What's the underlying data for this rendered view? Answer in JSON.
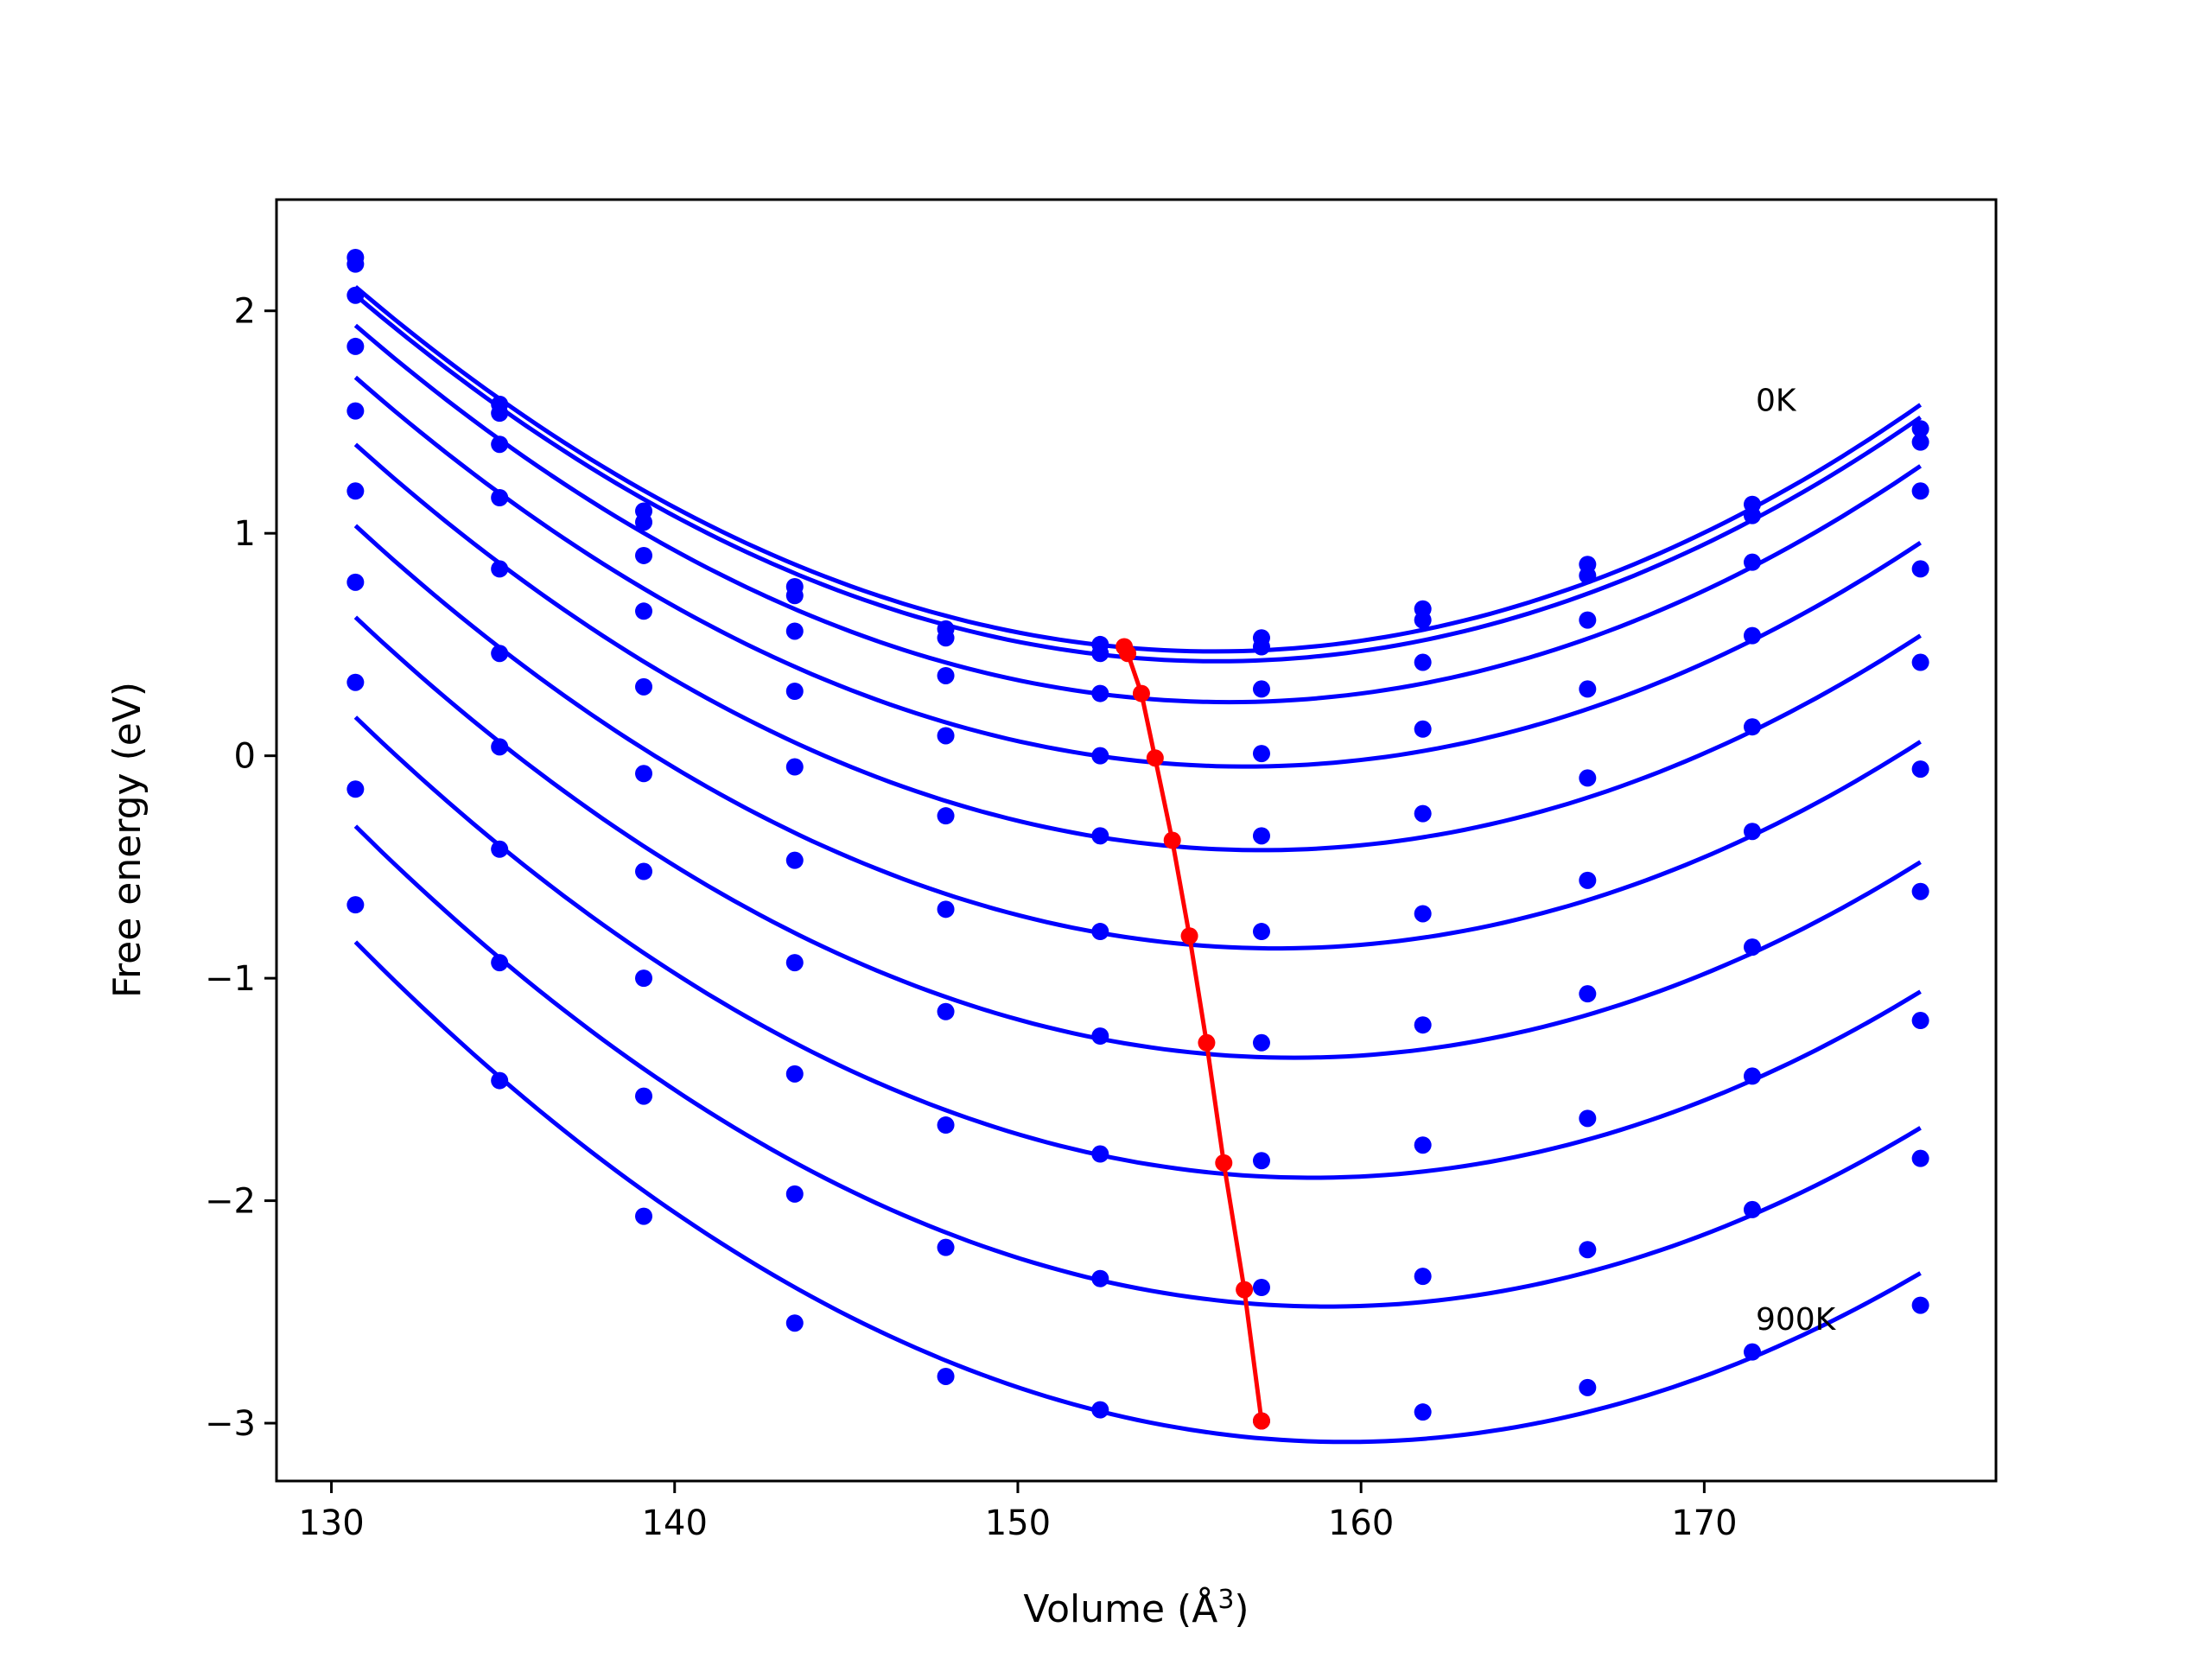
{
  "chart_data": {
    "type": "line",
    "title": "",
    "xlabel": "Volume (Å",
    "xlabel_sup": "3",
    "xlabel_close": ")",
    "ylabel": "Free energy (eV)",
    "xlim": [
      128.4,
      178.5
    ],
    "ylim": [
      -3.26,
      2.5
    ],
    "xticks": [
      130,
      140,
      150,
      160,
      170
    ],
    "yticks": [
      -3,
      -2,
      -1,
      0,
      1,
      2
    ],
    "ytick_labels": [
      "−3",
      "−2",
      "−1",
      "0",
      "1",
      "2"
    ],
    "grid": false,
    "colors": {
      "curves": "#0000ff",
      "minima": "#ff0000",
      "axes": "#000000"
    },
    "annotations": [
      {
        "text": "0K",
        "x": 171.5,
        "y": 1.55
      },
      {
        "text": "900K",
        "x": 171.5,
        "y": -2.58
      }
    ],
    "volumes": [
      130.7,
      134.9,
      139.1,
      143.5,
      147.9,
      152.4,
      157.1,
      161.8,
      166.6,
      171.4,
      176.3
    ],
    "series": [
      {
        "values": [
          2.24,
          1.58,
          1.1,
          0.76,
          0.57,
          0.5,
          0.53,
          0.66,
          0.86,
          1.13,
          1.47
        ],
        "min": [
          153.1,
          0.49
        ]
      },
      {
        "values": [
          2.21,
          1.54,
          1.05,
          0.72,
          0.53,
          0.46,
          0.49,
          0.61,
          0.81,
          1.08,
          1.41
        ],
        "min": [
          153.2,
          0.46
        ]
      },
      {
        "values": [
          2.07,
          1.4,
          0.9,
          0.56,
          0.36,
          0.28,
          0.3,
          0.42,
          0.61,
          0.87,
          1.19
        ],
        "min": [
          153.6,
          0.28
        ]
      },
      {
        "values": [
          1.84,
          1.16,
          0.65,
          0.29,
          0.09,
          0.0,
          0.01,
          0.12,
          0.3,
          0.54,
          0.84
        ],
        "min": [
          154.0,
          -0.01
        ]
      },
      {
        "values": [
          1.55,
          0.84,
          0.31,
          -0.05,
          -0.27,
          -0.36,
          -0.36,
          -0.26,
          -0.1,
          0.13,
          0.42
        ],
        "min": [
          154.5,
          -0.38
        ]
      },
      {
        "values": [
          1.19,
          0.46,
          -0.08,
          -0.47,
          -0.69,
          -0.79,
          -0.79,
          -0.71,
          -0.56,
          -0.34,
          -0.06
        ],
        "min": [
          155.0,
          -0.81
        ]
      },
      {
        "values": [
          0.78,
          0.04,
          -0.52,
          -0.93,
          -1.15,
          -1.26,
          -1.29,
          -1.21,
          -1.07,
          -0.86,
          -0.61
        ],
        "min": [
          155.5,
          -1.29
        ]
      },
      {
        "values": [
          0.33,
          -0.42,
          -1.0,
          -1.43,
          -1.66,
          -1.79,
          -1.82,
          -1.75,
          -1.63,
          -1.44,
          -1.19
        ],
        "min": [
          156.0,
          -1.83
        ]
      },
      {
        "values": [
          -0.15,
          -0.93,
          -1.53,
          -1.97,
          -2.21,
          -2.35,
          -2.39,
          -2.34,
          -2.22,
          -2.04,
          -1.81
        ],
        "min": [
          156.6,
          -2.4
        ]
      },
      {
        "values": [
          -0.67,
          -1.46,
          -2.07,
          -2.55,
          -2.79,
          -2.94,
          -2.99,
          -2.95,
          -2.84,
          -2.68,
          -2.47
        ],
        "min": [
          157.1,
          -2.99
        ]
      }
    ]
  }
}
